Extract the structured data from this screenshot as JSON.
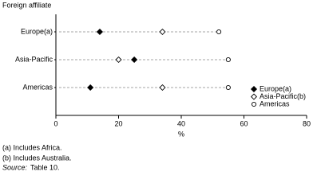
{
  "chart_data": {
    "type": "dot",
    "y_axis_label": "Foreign affiliate",
    "x_axis_label": "%",
    "categories": [
      "Europe(a)",
      "Asia-Pacific",
      "Americas"
    ],
    "series": [
      {
        "name": "Europe(a)",
        "color": "#000000",
        "marker": "filled-diamond",
        "values": [
          14,
          25,
          11
        ]
      },
      {
        "name": "Asia-Pacific(b)",
        "color": "#000000",
        "marker": "open-diamond",
        "values": [
          34,
          20,
          34
        ]
      },
      {
        "name": "Americas",
        "color": "#000000",
        "marker": "open-circle",
        "values": [
          52,
          55,
          55
        ]
      }
    ],
    "xlim": [
      0,
      80
    ],
    "xticks": [
      0,
      20,
      40,
      60,
      80
    ],
    "notes": [
      "(a) Includes Africa.",
      "(b) Includes Australia."
    ],
    "source_label": "Source:",
    "source": "Table 10."
  }
}
